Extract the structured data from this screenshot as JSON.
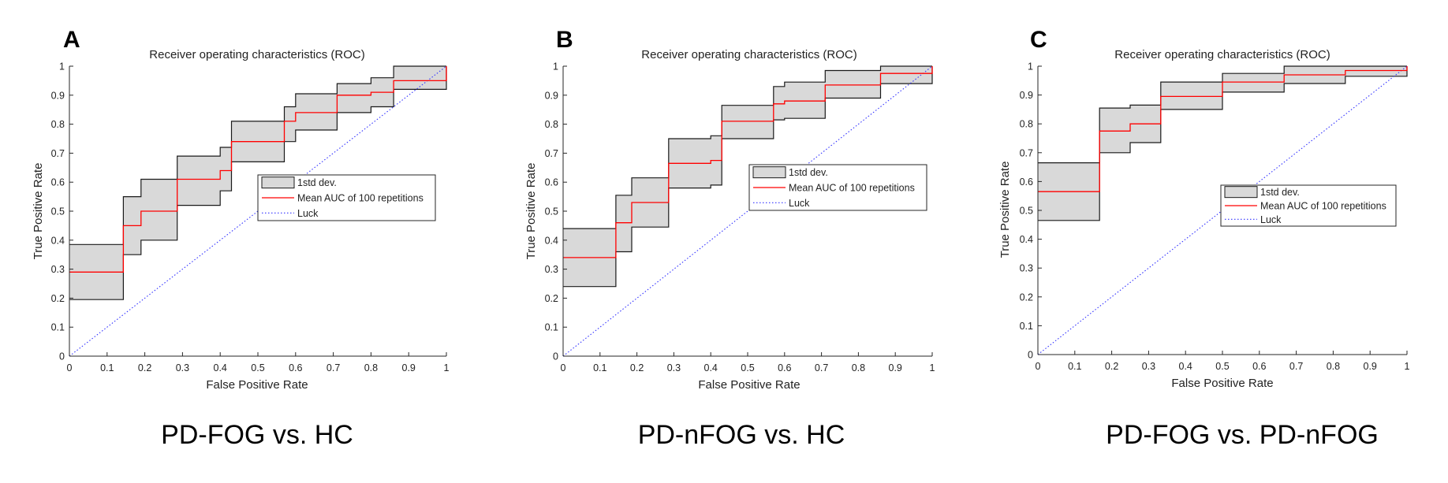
{
  "figure": {
    "colors": {
      "band_fill": "#d9d9d9",
      "band_edge": "#1a1a1a",
      "mean_line": "#ff0000",
      "luck_line": "#3333ff",
      "axis": "#262626"
    }
  },
  "chart_data": [
    {
      "type": "line",
      "panel_letter": "A",
      "title": "Receiver operating characteristics (ROC)",
      "xlabel": "False Positive Rate",
      "ylabel": "True Positive Rate",
      "caption": "PD-FOG vs. HC",
      "xlim": [
        0,
        1
      ],
      "ylim": [
        0,
        1
      ],
      "xticks": [
        "0",
        "0.1",
        "0.2",
        "0.3",
        "0.4",
        "0.5",
        "0.6",
        "0.7",
        "0.8",
        "0.9",
        "1"
      ],
      "yticks": [
        "0",
        "0.1",
        "0.2",
        "0.3",
        "0.4",
        "0.5",
        "0.6",
        "0.7",
        "0.8",
        "0.9",
        "1"
      ],
      "legend": {
        "position": "center-right",
        "entries": [
          "1std dev.",
          "Mean AUC of 100 repetitions",
          "Luck"
        ]
      },
      "series": [
        {
          "name": "Mean AUC of 100 repetitions",
          "style": "solid-red",
          "x": [
            0,
            0.143,
            0.143,
            0.19,
            0.19,
            0.286,
            0.286,
            0.4,
            0.4,
            0.43,
            0.43,
            0.57,
            0.57,
            0.6,
            0.6,
            0.71,
            0.71,
            0.8,
            0.8,
            0.86,
            0.86,
            1,
            1
          ],
          "y": [
            0.29,
            0.29,
            0.45,
            0.45,
            0.5,
            0.5,
            0.61,
            0.61,
            0.64,
            0.64,
            0.74,
            0.74,
            0.81,
            0.81,
            0.84,
            0.84,
            0.9,
            0.9,
            0.91,
            0.91,
            0.95,
            0.95,
            1.0
          ]
        },
        {
          "name": "1std dev. upper",
          "style": "band-upper",
          "x": [
            0,
            0.143,
            0.143,
            0.19,
            0.19,
            0.286,
            0.286,
            0.4,
            0.4,
            0.43,
            0.43,
            0.57,
            0.57,
            0.6,
            0.6,
            0.71,
            0.71,
            0.8,
            0.8,
            0.86,
            0.86,
            1,
            1
          ],
          "y": [
            0.385,
            0.385,
            0.55,
            0.55,
            0.61,
            0.61,
            0.69,
            0.69,
            0.72,
            0.72,
            0.81,
            0.81,
            0.86,
            0.86,
            0.905,
            0.905,
            0.94,
            0.94,
            0.96,
            0.96,
            1.0,
            1.0,
            1.0
          ]
        },
        {
          "name": "1std dev. lower",
          "style": "band-lower",
          "x": [
            0,
            0.143,
            0.143,
            0.19,
            0.19,
            0.286,
            0.286,
            0.4,
            0.4,
            0.43,
            0.43,
            0.57,
            0.57,
            0.6,
            0.6,
            0.71,
            0.71,
            0.8,
            0.8,
            0.86,
            0.86,
            1,
            1
          ],
          "y": [
            0.195,
            0.195,
            0.35,
            0.35,
            0.4,
            0.4,
            0.52,
            0.52,
            0.57,
            0.57,
            0.67,
            0.67,
            0.74,
            0.74,
            0.78,
            0.78,
            0.84,
            0.84,
            0.86,
            0.86,
            0.92,
            0.92,
            1.0
          ]
        },
        {
          "name": "Luck",
          "style": "dotted-blue",
          "x": [
            0,
            1
          ],
          "y": [
            0,
            1
          ]
        }
      ]
    },
    {
      "type": "line",
      "panel_letter": "B",
      "title": "Receiver operating characteristics (ROC)",
      "xlabel": "False Positive Rate",
      "ylabel": "True Positive Rate",
      "caption": "PD-nFOG vs. HC",
      "xlim": [
        0,
        1
      ],
      "ylim": [
        0,
        1
      ],
      "xticks": [
        "0",
        "0.1",
        "0.2",
        "0.3",
        "0.4",
        "0.5",
        "0.6",
        "0.7",
        "0.8",
        "0.9",
        "1"
      ],
      "yticks": [
        "0",
        "0.1",
        "0.2",
        "0.3",
        "0.4",
        "0.5",
        "0.6",
        "0.7",
        "0.8",
        "0.9",
        "1"
      ],
      "legend": {
        "position": "center-right",
        "entries": [
          "1std dev.",
          "Mean AUC of 100 repetitions",
          "Luck"
        ]
      },
      "series": [
        {
          "name": "Mean AUC of 100 repetitions",
          "style": "solid-red",
          "x": [
            0,
            0.143,
            0.143,
            0.186,
            0.186,
            0.286,
            0.286,
            0.4,
            0.4,
            0.43,
            0.43,
            0.57,
            0.57,
            0.6,
            0.6,
            0.71,
            0.71,
            0.86,
            0.86,
            1,
            1
          ],
          "y": [
            0.34,
            0.34,
            0.46,
            0.46,
            0.53,
            0.53,
            0.665,
            0.665,
            0.675,
            0.675,
            0.81,
            0.81,
            0.87,
            0.87,
            0.88,
            0.88,
            0.935,
            0.935,
            0.975,
            0.975,
            1.0
          ]
        },
        {
          "name": "1std dev. upper",
          "style": "band-upper",
          "x": [
            0,
            0.143,
            0.143,
            0.186,
            0.186,
            0.286,
            0.286,
            0.4,
            0.4,
            0.43,
            0.43,
            0.57,
            0.57,
            0.6,
            0.6,
            0.71,
            0.71,
            0.86,
            0.86,
            1,
            1
          ],
          "y": [
            0.44,
            0.44,
            0.555,
            0.555,
            0.615,
            0.615,
            0.75,
            0.75,
            0.76,
            0.76,
            0.865,
            0.865,
            0.93,
            0.93,
            0.945,
            0.945,
            0.985,
            0.985,
            1.0,
            1.0,
            1.0
          ]
        },
        {
          "name": "1std dev. lower",
          "style": "band-lower",
          "x": [
            0,
            0.143,
            0.143,
            0.186,
            0.186,
            0.286,
            0.286,
            0.4,
            0.4,
            0.43,
            0.43,
            0.57,
            0.57,
            0.6,
            0.6,
            0.71,
            0.71,
            0.86,
            0.86,
            1,
            1
          ],
          "y": [
            0.24,
            0.24,
            0.36,
            0.36,
            0.445,
            0.445,
            0.58,
            0.58,
            0.59,
            0.59,
            0.75,
            0.75,
            0.815,
            0.815,
            0.82,
            0.82,
            0.89,
            0.89,
            0.94,
            0.94,
            1.0
          ]
        },
        {
          "name": "Luck",
          "style": "dotted-blue",
          "x": [
            0,
            1
          ],
          "y": [
            0,
            1
          ]
        }
      ]
    },
    {
      "type": "line",
      "panel_letter": "C",
      "title": "Receiver operating characteristics (ROC)",
      "xlabel": "False Positive Rate",
      "ylabel": "True Positive Rate",
      "caption": "PD-FOG vs. PD-nFOG",
      "xlim": [
        0,
        1
      ],
      "ylim": [
        0,
        1
      ],
      "xticks": [
        "0",
        "0.1",
        "0.2",
        "0.3",
        "0.4",
        "0.5",
        "0.6",
        "0.7",
        "0.8",
        "0.9",
        "1"
      ],
      "yticks": [
        "0",
        "0.1",
        "0.2",
        "0.3",
        "0.4",
        "0.5",
        "0.6",
        "0.7",
        "0.8",
        "0.9",
        "1"
      ],
      "legend": {
        "position": "center-right",
        "entries": [
          "1std dev.",
          "Mean AUC of 100 repetitions",
          "Luck"
        ]
      },
      "series": [
        {
          "name": "Mean AUC of 100 repetitions",
          "style": "solid-red",
          "x": [
            0,
            0.167,
            0.167,
            0.25,
            0.25,
            0.333,
            0.333,
            0.5,
            0.5,
            0.667,
            0.667,
            0.833,
            0.833,
            1,
            1
          ],
          "y": [
            0.565,
            0.565,
            0.775,
            0.775,
            0.8,
            0.8,
            0.895,
            0.895,
            0.945,
            0.945,
            0.97,
            0.97,
            0.985,
            0.985,
            1.0
          ]
        },
        {
          "name": "1std dev. upper",
          "style": "band-upper",
          "x": [
            0,
            0.167,
            0.167,
            0.25,
            0.25,
            0.333,
            0.333,
            0.5,
            0.5,
            0.667,
            0.667,
            0.833,
            0.833,
            1,
            1
          ],
          "y": [
            0.665,
            0.665,
            0.855,
            0.855,
            0.865,
            0.865,
            0.945,
            0.945,
            0.975,
            0.975,
            1.0,
            1.0,
            1.0,
            1.0,
            1.0
          ]
        },
        {
          "name": "1std dev. lower",
          "style": "band-lower",
          "x": [
            0,
            0.167,
            0.167,
            0.25,
            0.25,
            0.333,
            0.333,
            0.5,
            0.5,
            0.667,
            0.667,
            0.833,
            0.833,
            1,
            1
          ],
          "y": [
            0.465,
            0.465,
            0.7,
            0.7,
            0.735,
            0.735,
            0.85,
            0.85,
            0.91,
            0.91,
            0.94,
            0.94,
            0.965,
            0.965,
            1.0
          ]
        },
        {
          "name": "Luck",
          "style": "dotted-blue",
          "x": [
            0,
            1
          ],
          "y": [
            0,
            1
          ]
        }
      ]
    }
  ]
}
